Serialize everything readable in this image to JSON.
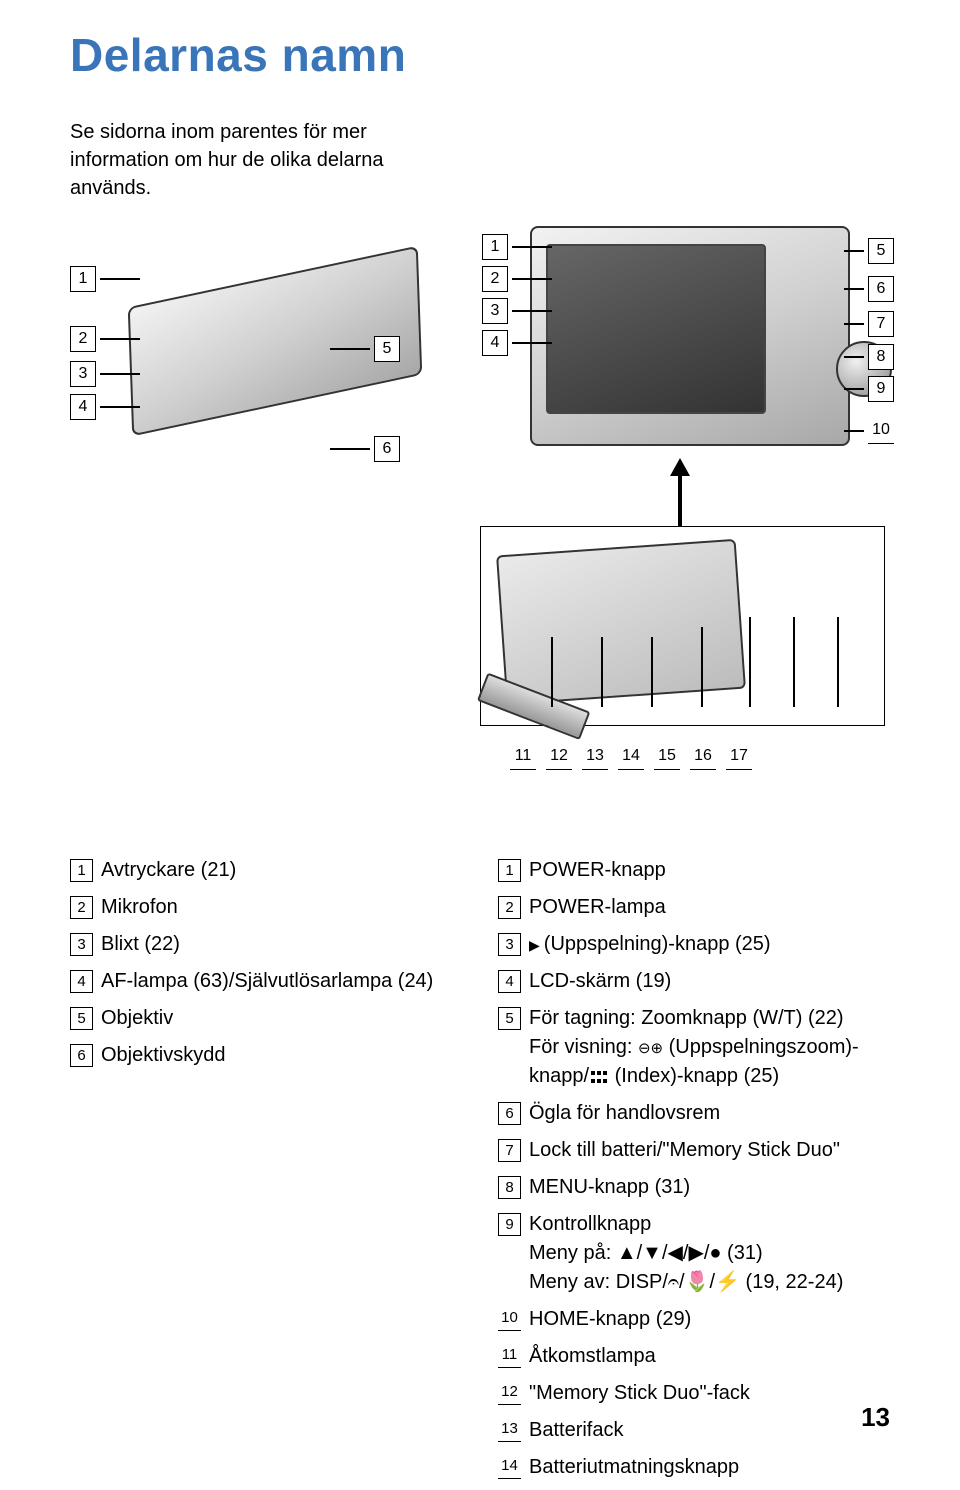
{
  "title": "Delarnas namn",
  "intro": "Se sidorna inom parentes för mer information om hur de olika delarna används.",
  "leftParts": [
    {
      "n": "1",
      "label": "Avtryckare (21)"
    },
    {
      "n": "2",
      "label": "Mikrofon"
    },
    {
      "n": "3",
      "label": "Blixt (22)"
    },
    {
      "n": "4",
      "label": "AF-lampa (63)/Självutlösarlampa (24)"
    },
    {
      "n": "5",
      "label": "Objektiv"
    },
    {
      "n": "6",
      "label": "Objektivskydd"
    }
  ],
  "rightParts": [
    {
      "n": "1",
      "html": "POWER-knapp"
    },
    {
      "n": "2",
      "html": "POWER-lampa"
    },
    {
      "n": "3",
      "html": "<span class='icon-play'></span>(Uppspelning)-knapp (25)"
    },
    {
      "n": "4",
      "html": "LCD-skärm (19)"
    },
    {
      "n": "5",
      "html": "För tagning: Zoomknapp (W/T) (22)<span class='sub-line'>För visning: <span class='icon-zoom'>⊖⊕</span> (Uppspelningszoom)-knapp/<span class='icon-grid'></span> (Index)-knapp (25)</span>"
    },
    {
      "n": "6",
      "html": "Ögla för handlovsrem"
    },
    {
      "n": "7",
      "html": "Lock till batteri/\"Memory Stick Duo\""
    },
    {
      "n": "8",
      "html": "MENU-knapp (31)"
    },
    {
      "n": "9",
      "html": "Kontrollknapp<span class='sub-line'>Meny på: ▲/▼/◀/▶/● (31)</span><span class='sub-line'>Meny av: DISP/𝄐/🌷/⚡ (19, 22-24)</span>"
    },
    {
      "n": "10",
      "html": "HOME-knapp (29)",
      "underlined": true
    },
    {
      "n": "11",
      "html": "Åtkomstlampa",
      "underlined": true
    },
    {
      "n": "12",
      "html": "\"Memory Stick Duo\"-fack",
      "underlined": true
    },
    {
      "n": "13",
      "html": "Batterifack",
      "underlined": true
    },
    {
      "n": "14",
      "html": "Batteriutmatningsknapp",
      "underlined": true
    }
  ],
  "bottomCallouts": [
    "11",
    "12",
    "13",
    "14",
    "15",
    "16",
    "17"
  ],
  "colors": {
    "title": "#3a74b9",
    "text": "#000000",
    "background": "#ffffff"
  },
  "pageNumber": "13"
}
